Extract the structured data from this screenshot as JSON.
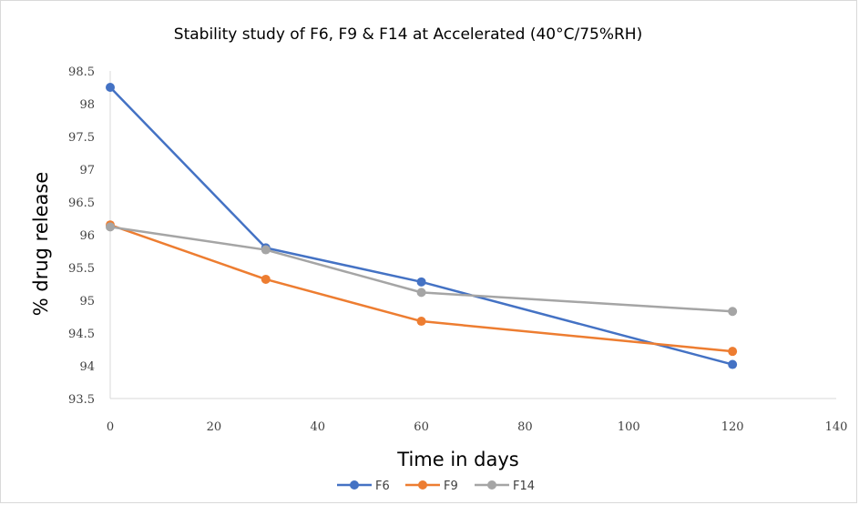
{
  "chart_data": {
    "type": "line",
    "title": "Stability study of F6, F9 & F14 at Accelerated (40°C/75%RH)",
    "xlabel": "Time in days",
    "ylabel": "% drug release",
    "xlim": [
      0,
      140
    ],
    "ylim": [
      93.5,
      98.5
    ],
    "x_ticks": [
      "0",
      "20",
      "40",
      "60",
      "80",
      "100",
      "120",
      "140"
    ],
    "y_ticks": [
      "93.5",
      "94",
      "94.5",
      "95",
      "95.5",
      "96",
      "96.5",
      "97",
      "97.5",
      "98",
      "98.5"
    ],
    "grid": false,
    "legend_position": "bottom",
    "x": [
      0,
      30,
      60,
      120
    ],
    "series": [
      {
        "name": "F6",
        "color": "#4472c4",
        "values": [
          98.25,
          95.8,
          95.28,
          94.02
        ]
      },
      {
        "name": "F9",
        "color": "#ed7d31",
        "values": [
          96.15,
          95.32,
          94.68,
          94.22
        ]
      },
      {
        "name": "F14",
        "color": "#a5a5a5",
        "values": [
          96.12,
          95.77,
          95.12,
          94.83
        ]
      }
    ]
  }
}
